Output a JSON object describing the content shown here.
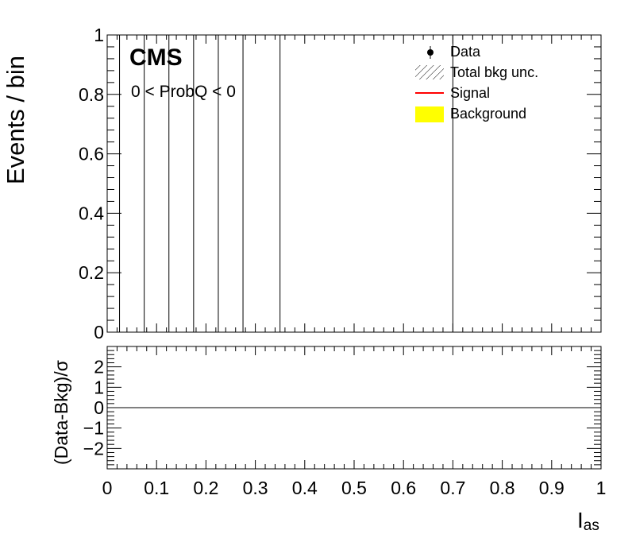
{
  "chart_data": {
    "type": "bar",
    "main_panel": {
      "ylabel": "Events / bin",
      "ylim": [
        0,
        1
      ],
      "yticks": [
        0,
        0.2,
        0.4,
        0.6,
        0.8,
        1
      ],
      "ytick_labels": [
        "0",
        "0.2",
        "0.4",
        "0.6",
        "0.8",
        "1"
      ],
      "bin_edges": [
        0.025,
        0.075,
        0.125,
        0.175,
        0.225,
        0.275,
        0.35,
        0.7
      ],
      "series": [
        {
          "name": "Data",
          "values": []
        },
        {
          "name": "Signal",
          "values": []
        },
        {
          "name": "Background",
          "values": []
        }
      ]
    },
    "ratio_panel": {
      "ylabel": "(Data-Bkg)/σ",
      "ylim": [
        -3,
        3
      ],
      "yticks": [
        -2,
        -1,
        0,
        1,
        2
      ],
      "ytick_labels": [
        "−2",
        "−1",
        "0",
        "1",
        "2"
      ],
      "reference_line": 0
    },
    "x": {
      "label_main": "I",
      "label_sub": "as",
      "xlim": [
        0,
        1
      ],
      "xticks": [
        0,
        0.1,
        0.2,
        0.3,
        0.4,
        0.5,
        0.6,
        0.7,
        0.8,
        0.9,
        1
      ],
      "xtick_labels": [
        "0",
        "0.1",
        "0.2",
        "0.3",
        "0.4",
        "0.5",
        "0.6",
        "0.7",
        "0.8",
        "0.9",
        "1"
      ]
    },
    "experiment_label": "CMS",
    "region_label": "0 < ProbQ < 0",
    "legend": {
      "placement": "top-right",
      "entries": [
        {
          "label": "Data",
          "style": "marker"
        },
        {
          "label": "Total bkg unc.",
          "style": "hatch"
        },
        {
          "label": "Signal",
          "style": "line",
          "color": "#ff0000"
        },
        {
          "label": "Background",
          "style": "fill",
          "color": "#ffff00"
        }
      ]
    },
    "grid": false
  }
}
